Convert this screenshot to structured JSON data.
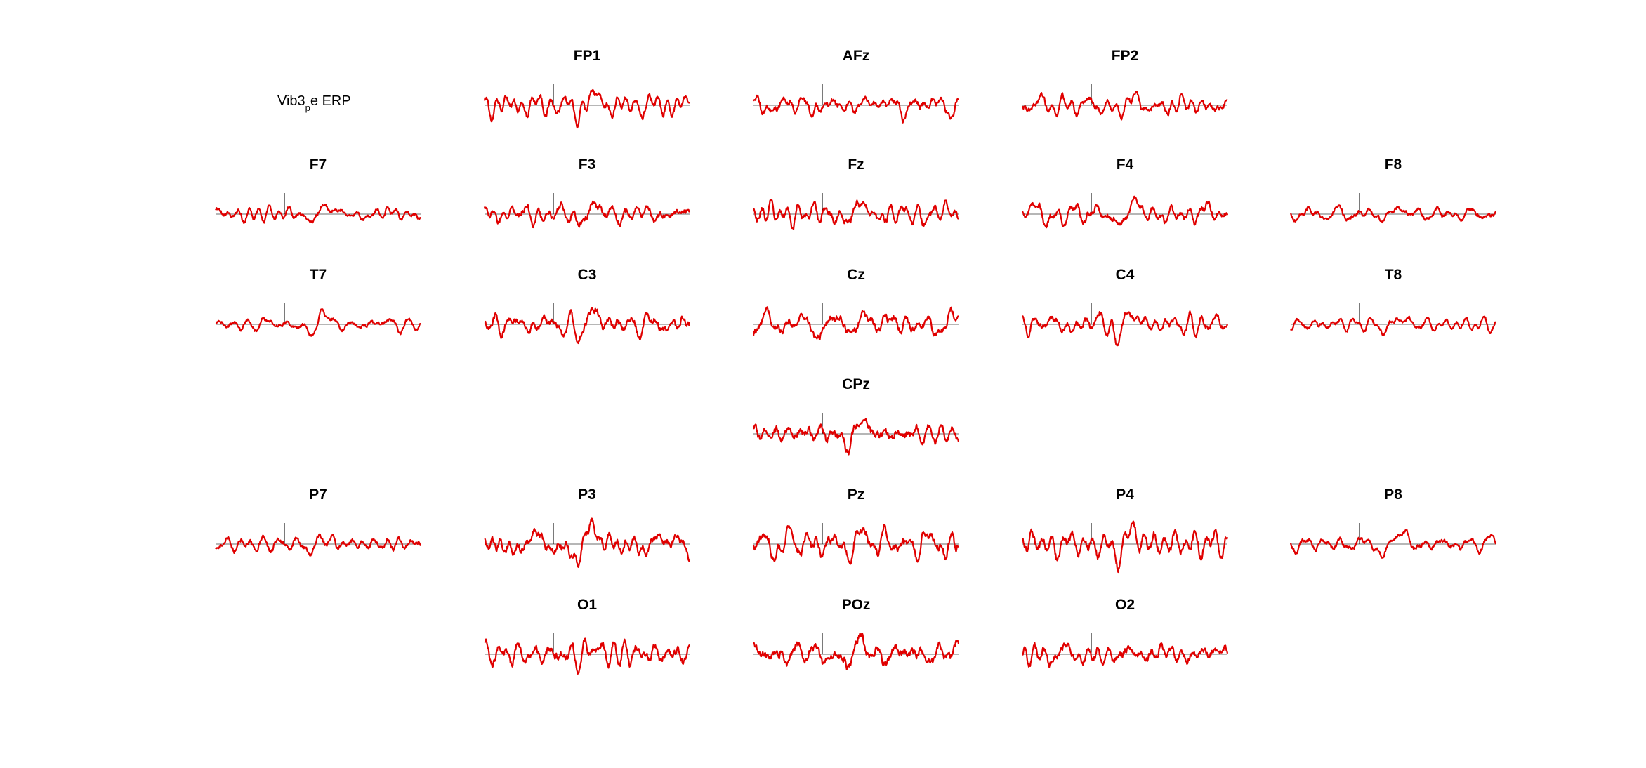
{
  "figure": {
    "label_main": "Vib3",
    "label_sub": "p",
    "label_rest": "e ERP"
  },
  "colors": {
    "trace": "#e00000",
    "baseline": "#8a8a8a",
    "marker": "#000000"
  },
  "chart_data": {
    "type": "line",
    "description_kind": "eeg-topographic-erp-grid",
    "xlabel": "",
    "ylabel": "",
    "grid": false,
    "series_color": "#e00000",
    "channels": [
      {
        "name": "FP1",
        "row": 0,
        "col": 1,
        "amp": 0.85,
        "peak": 0.85,
        "dip": -0.75
      },
      {
        "name": "AFz",
        "row": 0,
        "col": 2,
        "amp": 0.8,
        "peak": 0.55,
        "dip": -0.5
      },
      {
        "name": "FP2",
        "row": 0,
        "col": 3,
        "amp": 0.75,
        "peak": 0.45,
        "dip": -0.55
      },
      {
        "name": "F7",
        "row": 1,
        "col": 0,
        "amp": 0.55,
        "peak": 0.65,
        "dip": -0.55
      },
      {
        "name": "F3",
        "row": 1,
        "col": 1,
        "amp": 0.85,
        "peak": 0.6,
        "dip": -0.65
      },
      {
        "name": "Fz",
        "row": 1,
        "col": 2,
        "amp": 0.9,
        "peak": 0.75,
        "dip": -0.65
      },
      {
        "name": "F4",
        "row": 1,
        "col": 3,
        "amp": 0.85,
        "peak": 0.7,
        "dip": -0.75
      },
      {
        "name": "F8",
        "row": 1,
        "col": 4,
        "amp": 0.55,
        "peak": 0.55,
        "dip": -0.35
      },
      {
        "name": "T7",
        "row": 2,
        "col": 0,
        "amp": 0.5,
        "peak": 0.7,
        "dip": -0.8
      },
      {
        "name": "C3",
        "row": 2,
        "col": 1,
        "amp": 0.9,
        "peak": 1.3,
        "dip": -1.3
      },
      {
        "name": "Cz",
        "row": 2,
        "col": 2,
        "amp": 1.05,
        "peak": 1.2,
        "dip": -1.15
      },
      {
        "name": "C4",
        "row": 2,
        "col": 3,
        "amp": 0.85,
        "peak": 1.1,
        "dip": -1.15
      },
      {
        "name": "T8",
        "row": 2,
        "col": 4,
        "amp": 0.5,
        "peak": 0.55,
        "dip": -0.6
      },
      {
        "name": "CPz",
        "row": 3,
        "col": 2,
        "amp": 1.2,
        "peak": 1.45,
        "dip": -1.4
      },
      {
        "name": "P7",
        "row": 4,
        "col": 0,
        "amp": 0.65,
        "peak": 0.55,
        "dip": -0.75
      },
      {
        "name": "P3",
        "row": 4,
        "col": 1,
        "amp": 1.05,
        "peak": 1.35,
        "dip": -1.45
      },
      {
        "name": "Pz",
        "row": 4,
        "col": 2,
        "amp": 1.25,
        "peak": 1.45,
        "dip": -1.35
      },
      {
        "name": "P4",
        "row": 4,
        "col": 3,
        "amp": 1.15,
        "peak": 1.35,
        "dip": -1.45
      },
      {
        "name": "P8",
        "row": 4,
        "col": 4,
        "amp": 0.65,
        "peak": 1.1,
        "dip": -0.9
      },
      {
        "name": "O1",
        "row": 5,
        "col": 1,
        "amp": 1.15,
        "peak": 0.7,
        "dip": -0.65
      },
      {
        "name": "POz",
        "row": 5,
        "col": 2,
        "amp": 1.15,
        "peak": 1.1,
        "dip": -1.0
      },
      {
        "name": "O2",
        "row": 5,
        "col": 3,
        "amp": 1.05,
        "peak": 0.7,
        "dip": -0.95
      }
    ]
  }
}
